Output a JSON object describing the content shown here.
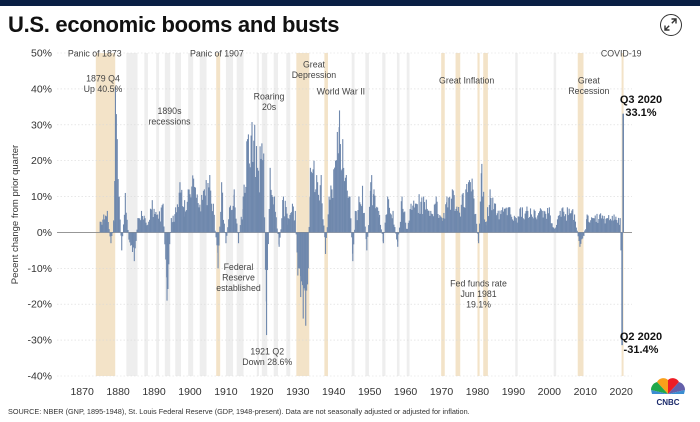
{
  "header": {
    "title": "U.S. economic booms and busts",
    "expand_icon": "expand-arrows-icon"
  },
  "footer": {
    "source": "SOURCE: NBER (GNP, 1895-1948), St. Louis Federal Reserve (GDP, 1948-present). Data are not seasonally adjusted or adjusted for inflation."
  },
  "logo": {
    "name": "cnbc-peacock-logo",
    "text": "CNBC"
  },
  "colors": {
    "bar": "#6f88ad",
    "recession_band": "#eeeeee",
    "major_band": "#f3e3c8",
    "grid": "#d9d9d9",
    "zero_line": "#888888"
  },
  "chart_data": {
    "type": "bar",
    "title": "U.S. economic booms and busts",
    "ylabel": "Pecent change from prior quarter",
    "xlabel": "",
    "xlim": [
      1863,
      2023
    ],
    "ylim": [
      -40,
      50
    ],
    "yticks": [
      50,
      40,
      30,
      20,
      10,
      0,
      -10,
      -20,
      -30,
      -40
    ],
    "ytick_labels": [
      "50%",
      "40%",
      "30%",
      "20%",
      "10%",
      "0%",
      "-10%",
      "-20%",
      "-30%",
      "-40%"
    ],
    "xticks": [
      1870,
      1880,
      1890,
      1900,
      1910,
      1920,
      1930,
      1940,
      1950,
      1960,
      1970,
      1980,
      1990,
      2000,
      2010,
      2020
    ],
    "grid": true,
    "major_events": [
      {
        "label": "Panic of 1873",
        "start": 1873.8,
        "end": 1879.2
      },
      {
        "label": "Panic of 1907",
        "start": 1907.3,
        "end": 1908.4
      },
      {
        "label": "Great Depression",
        "start": 1929.6,
        "end": 1933.2
      },
      {
        "label": "",
        "start": 1937.4,
        "end": 1938.4
      },
      {
        "label": "Great Inflation",
        "start": 1969.9,
        "end": 1970.9
      },
      {
        "label": "",
        "start": 1973.9,
        "end": 1975.2
      },
      {
        "label": "",
        "start": 1980.0,
        "end": 1980.6
      },
      {
        "label": "",
        "start": 1981.6,
        "end": 1982.9
      },
      {
        "label": "Great Recession",
        "start": 2007.9,
        "end": 2009.5
      },
      {
        "label": "COVID-19",
        "start": 2020.1,
        "end": 2020.5
      }
    ],
    "recession_bands": [
      [
        1882.3,
        1885.4
      ],
      [
        1887.3,
        1888.3
      ],
      [
        1890.6,
        1891.4
      ],
      [
        1893.0,
        1894.5
      ],
      [
        1895.9,
        1897.5
      ],
      [
        1899.5,
        1900.9
      ],
      [
        1902.7,
        1904.6
      ],
      [
        1910.0,
        1912.0
      ],
      [
        1913.0,
        1914.9
      ],
      [
        1918.6,
        1919.2
      ],
      [
        1920.0,
        1921.5
      ],
      [
        1923.3,
        1924.5
      ],
      [
        1926.8,
        1927.9
      ],
      [
        1945.0,
        1945.8
      ],
      [
        1948.8,
        1949.8
      ],
      [
        1953.5,
        1954.4
      ],
      [
        1957.6,
        1958.3
      ],
      [
        1960.3,
        1961.1
      ],
      [
        1990.5,
        1991.2
      ],
      [
        2001.2,
        2001.9
      ]
    ],
    "series": [
      {
        "name": "",
        "anchors": [
          [
            1875.0,
            3
          ],
          [
            1876.0,
            5
          ],
          [
            1877.0,
            6
          ],
          [
            1878.0,
            -3
          ],
          [
            1878.8,
            3
          ],
          [
            1879.25,
            40.5
          ],
          [
            1879.75,
            26
          ],
          [
            1880.3,
            10
          ],
          [
            1881.0,
            -5
          ],
          [
            1882.0,
            11
          ],
          [
            1883.0,
            -2
          ],
          [
            1884.5,
            -8
          ],
          [
            1885.5,
            4
          ],
          [
            1886.5,
            6
          ],
          [
            1888.0,
            2
          ],
          [
            1889.5,
            9
          ],
          [
            1891.0,
            5
          ],
          [
            1892.5,
            8
          ],
          [
            1893.6,
            -19
          ],
          [
            1894.8,
            4
          ],
          [
            1896.0,
            7
          ],
          [
            1897.2,
            14
          ],
          [
            1898.5,
            9
          ],
          [
            1899.5,
            12
          ],
          [
            1901.0,
            15
          ],
          [
            1902.5,
            7
          ],
          [
            1904.0,
            12
          ],
          [
            1905.5,
            16
          ],
          [
            1906.5,
            8
          ],
          [
            1907.8,
            -10
          ],
          [
            1908.8,
            14
          ],
          [
            1910.0,
            -3
          ],
          [
            1911.0,
            7
          ],
          [
            1912.3,
            12
          ],
          [
            1913.5,
            -3
          ],
          [
            1914.8,
            10
          ],
          [
            1916.0,
            26
          ],
          [
            1917.0,
            27
          ],
          [
            1918.0,
            30
          ],
          [
            1918.8,
            18
          ],
          [
            1919.5,
            24
          ],
          [
            1920.5,
            22
          ],
          [
            1921.3,
            -28.6
          ],
          [
            1922.3,
            18
          ],
          [
            1923.5,
            10
          ],
          [
            1924.8,
            -4
          ],
          [
            1926.0,
            10
          ],
          [
            1927.3,
            4
          ],
          [
            1928.5,
            8
          ],
          [
            1929.3,
            6
          ],
          [
            1930.0,
            -12
          ],
          [
            1930.8,
            -18
          ],
          [
            1931.5,
            -24
          ],
          [
            1932.2,
            -26
          ],
          [
            1932.9,
            -10
          ],
          [
            1933.5,
            18
          ],
          [
            1934.5,
            20
          ],
          [
            1935.5,
            14
          ],
          [
            1936.5,
            16
          ],
          [
            1937.7,
            -6
          ],
          [
            1938.7,
            10
          ],
          [
            1939.5,
            12
          ],
          [
            1940.5,
            20
          ],
          [
            1941.0,
            28
          ],
          [
            1941.6,
            34
          ],
          [
            1942.5,
            26
          ],
          [
            1943.5,
            16
          ],
          [
            1944.5,
            10
          ],
          [
            1945.3,
            -8
          ],
          [
            1946.0,
            6
          ],
          [
            1947.0,
            10
          ],
          [
            1948.0,
            13
          ],
          [
            1949.2,
            -5
          ],
          [
            1950.3,
            14
          ],
          [
            1951.2,
            12
          ],
          [
            1952.5,
            6
          ],
          [
            1953.8,
            -3
          ],
          [
            1955.0,
            10
          ],
          [
            1956.5,
            6
          ],
          [
            1957.8,
            -4
          ],
          [
            1959.0,
            10
          ],
          [
            1960.5,
            1
          ],
          [
            1961.5,
            8
          ],
          [
            1963.0,
            8
          ],
          [
            1965.0,
            10
          ],
          [
            1967.0,
            6
          ],
          [
            1968.5,
            10
          ],
          [
            1970.4,
            4
          ],
          [
            1971.5,
            10
          ],
          [
            1973.0,
            12
          ],
          [
            1974.5,
            6
          ],
          [
            1976.0,
            11
          ],
          [
            1977.5,
            14
          ],
          [
            1978.5,
            15
          ],
          [
            1980.3,
            -3
          ],
          [
            1981.2,
            19.1
          ],
          [
            1982.3,
            2
          ],
          [
            1983.5,
            12
          ],
          [
            1985.0,
            8
          ],
          [
            1987.0,
            7
          ],
          [
            1989.0,
            7
          ],
          [
            1990.8,
            4
          ],
          [
            1992.0,
            7
          ],
          [
            1994.0,
            6
          ],
          [
            1996.0,
            6
          ],
          [
            1998.0,
            6
          ],
          [
            2000.0,
            7
          ],
          [
            2001.5,
            1
          ],
          [
            2003.0,
            6
          ],
          [
            2005.0,
            7
          ],
          [
            2007.0,
            5
          ],
          [
            2008.5,
            -4
          ],
          [
            2009.6,
            -1
          ],
          [
            2010.5,
            5
          ],
          [
            2012.0,
            4
          ],
          [
            2014.0,
            5
          ],
          [
            2016.0,
            4
          ],
          [
            2018.0,
            5
          ],
          [
            2019.7,
            4
          ]
        ]
      }
    ],
    "covid_quarters": [
      {
        "x": 2020.0,
        "value": -5
      },
      {
        "x": 2020.25,
        "value": -31.4
      },
      {
        "x": 2020.55,
        "value": 33.1
      }
    ],
    "annotations": [
      {
        "text": "Panic of 1873",
        "x": 1873.5,
        "y": 49,
        "lines": [
          "Panic of 1873"
        ]
      },
      {
        "text": "1879 Q4 Up 40.5%",
        "x": 1875.8,
        "y": 42,
        "lines": [
          "1879 Q4",
          "Up 40.5%"
        ]
      },
      {
        "text": "1890s recessions",
        "x": 1894.3,
        "y": 33,
        "lines": [
          "1890s",
          "recessions"
        ]
      },
      {
        "text": "Panic of 1907",
        "x": 1907.5,
        "y": 49,
        "lines": [
          "Panic of 1907"
        ]
      },
      {
        "text": "Roaring 20s",
        "x": 1922.0,
        "y": 37,
        "lines": [
          "Roaring",
          "20s"
        ]
      },
      {
        "text": "Great Depression",
        "x": 1934.5,
        "y": 46,
        "lines": [
          "Great",
          "Depression"
        ]
      },
      {
        "text": "World War II",
        "x": 1942.0,
        "y": 38.5,
        "lines": [
          "World War II"
        ]
      },
      {
        "text": "Federal Reserve established",
        "x": 1913.5,
        "y": -10.5,
        "lines": [
          "Federal",
          "Reserve",
          "established"
        ]
      },
      {
        "text": "1921 Q2 Down 28.6%",
        "x": 1921.5,
        "y": -34,
        "lines": [
          "1921 Q2",
          "Down 28.6%"
        ]
      },
      {
        "text": "Great Inflation",
        "x": 1977.0,
        "y": 41.5,
        "lines": [
          "Great Inflation"
        ]
      },
      {
        "text": "Fed funds rate Jun 1981 19.1%",
        "x": 1980.3,
        "y": -15,
        "lines": [
          "Fed funds rate",
          "Jun 1981",
          "19.1%"
        ]
      },
      {
        "text": "Great Recession",
        "x": 2011.0,
        "y": 41.5,
        "lines": [
          "Great",
          "Recession"
        ]
      },
      {
        "text": "COVID-19",
        "x": 2020.0,
        "y": 49,
        "lines": [
          "COVID-19"
        ]
      }
    ],
    "callouts": [
      {
        "title": "Q3 2020",
        "value": "33.1%",
        "x": 2025.5,
        "y": 36
      },
      {
        "title": "Q2 2020",
        "value": "-31.4%",
        "x": 2025.5,
        "y": -30
      }
    ]
  }
}
